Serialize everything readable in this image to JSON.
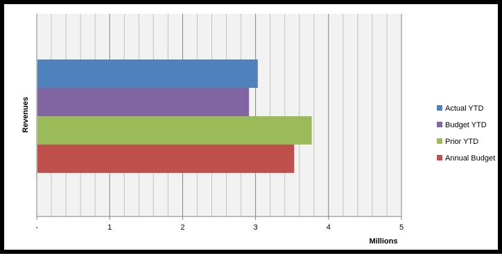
{
  "chart_data": {
    "type": "bar",
    "orientation": "horizontal",
    "categories": [
      "Revenues"
    ],
    "series": [
      {
        "name": "Actual YTD",
        "values": [
          3.03
        ],
        "color": "#4f81bd"
      },
      {
        "name": "Budget YTD",
        "values": [
          2.91
        ],
        "color": "#8064a2"
      },
      {
        "name": "Prior YTD",
        "values": [
          3.77
        ],
        "color": "#9bbb59"
      },
      {
        "name": "Annual Budget",
        "values": [
          3.53
        ],
        "color": "#c0504d"
      }
    ],
    "x_ticks": [
      "-",
      "1",
      "2",
      "3",
      "4",
      "5"
    ],
    "xlim": [
      0,
      5
    ],
    "minor_step": 0.2,
    "xlabel": "Millions",
    "ylabel": "Revenues",
    "grid": true,
    "plot_background": "#f2f2f2",
    "legend_position": "right"
  }
}
